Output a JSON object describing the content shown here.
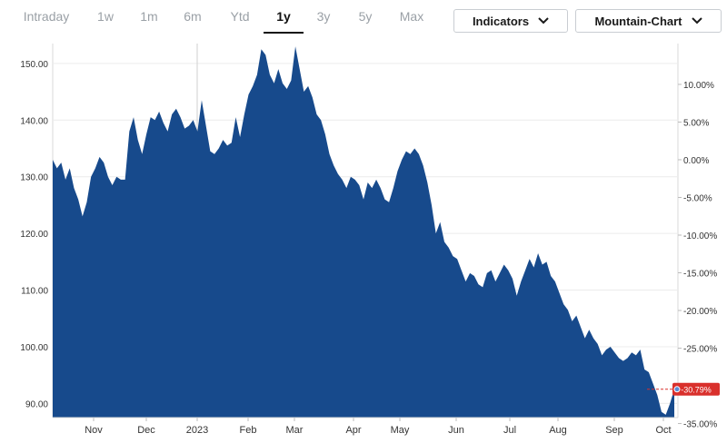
{
  "toolbar": {
    "range_tabs": [
      "Intraday",
      "1w",
      "1m",
      "6m",
      "Ytd",
      "1y",
      "3y",
      "5y",
      "Max"
    ],
    "active_tab": "1y",
    "indicators_label": "Indicators",
    "chart_type_label": "Mountain-Chart"
  },
  "colors": {
    "area_fill": "#174a8c",
    "badge": "#d9302c",
    "active_tab": "#111111",
    "inactive_tab": "#9aa0a6"
  },
  "chart_data": {
    "type": "area",
    "title": "",
    "xlabel": "",
    "ylabel": "",
    "x_tick_labels": [
      "Nov",
      "Dec",
      "2023",
      "Feb",
      "Mar",
      "Apr",
      "May",
      "Jun",
      "Jul",
      "Aug",
      "Sep",
      "Oct"
    ],
    "y_left_ticks": [
      "90.00",
      "100.00",
      "110.00",
      "120.00",
      "130.00",
      "140.00",
      "150.00"
    ],
    "y_right_ticks": [
      "10.00%",
      "5.00%",
      "0.00%",
      "-5.00%",
      "-10.00%",
      "-15.00%",
      "-20.00%",
      "-25.00%",
      "-30.00%",
      "-35.00%"
    ],
    "ylim_left": [
      87.5,
      153.5
    ],
    "last_change_label": "-30.79%",
    "grid": true,
    "series": [
      {
        "values": [
          133.0,
          131.5,
          132.5,
          129.5,
          131.5,
          128.0,
          126.0,
          123.0,
          125.5,
          130.0,
          131.5,
          133.5,
          132.5,
          130.0,
          128.5,
          130.0,
          129.5,
          129.5,
          138.0,
          140.5,
          136.5,
          134.0,
          137.5,
          140.5,
          140.0,
          141.5,
          139.5,
          138.0,
          141.0,
          142.0,
          140.5,
          138.5,
          139.0,
          140.0,
          138.0,
          143.5,
          139.0,
          134.5,
          134.0,
          135.0,
          136.5,
          135.5,
          136.0,
          140.5,
          137.0,
          141.0,
          144.5,
          146.0,
          148.0,
          152.5,
          151.5,
          148.0,
          146.5,
          149.0,
          146.5,
          145.5,
          147.0,
          153.0,
          149.0,
          145.0,
          146.0,
          144.0,
          141.0,
          140.0,
          137.5,
          134.0,
          132.0,
          130.5,
          129.5,
          128.0,
          130.0,
          129.5,
          128.5,
          126.0,
          129.0,
          128.0,
          129.5,
          128.0,
          126.0,
          125.5,
          128.0,
          131.0,
          133.0,
          134.5,
          134.0,
          135.0,
          134.0,
          132.0,
          129.0,
          125.0,
          120.0,
          122.0,
          118.5,
          117.5,
          116.0,
          115.5,
          113.5,
          111.5,
          113.0,
          112.5,
          111.0,
          110.5,
          113.0,
          113.5,
          111.5,
          113.0,
          114.5,
          113.5,
          112.0,
          109.0,
          111.5,
          113.5,
          115.5,
          114.0,
          116.5,
          114.5,
          115.0,
          112.5,
          111.5,
          109.5,
          107.5,
          106.5,
          104.5,
          105.5,
          103.5,
          101.5,
          103.0,
          101.5,
          100.5,
          98.5,
          99.5,
          100.0,
          99.0,
          98.0,
          97.5,
          98.0,
          99.0,
          98.5,
          99.5,
          96.0,
          95.5,
          93.5,
          91.5,
          88.5,
          88.0,
          90.0,
          92.5
        ]
      }
    ]
  }
}
